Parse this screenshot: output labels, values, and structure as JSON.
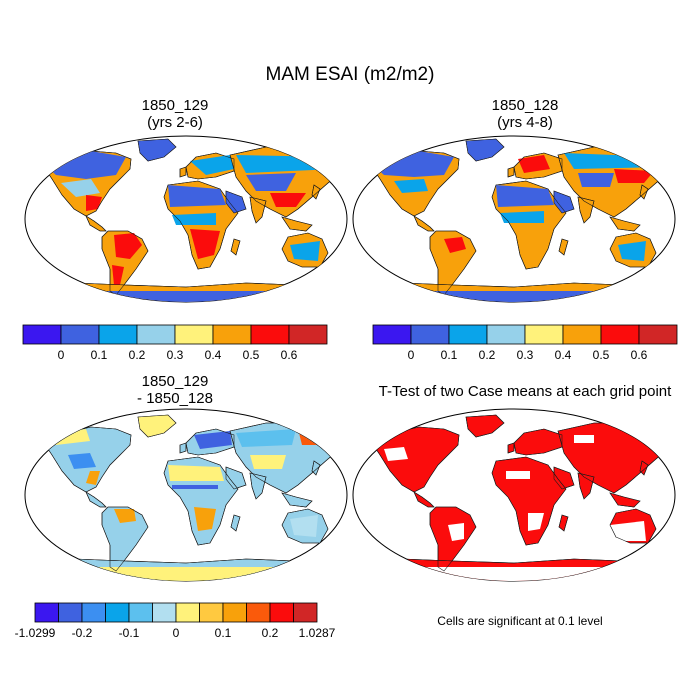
{
  "title": "MAM ESAI (m2/m2)",
  "panels": [
    {
      "name": "1850_129",
      "title_line1": "1850_129",
      "title_line2": "(yrs 2-6)"
    },
    {
      "name": "1850_128",
      "title_line1": "1850_128",
      "title_line2": "(yrs 4-8)"
    },
    {
      "name": "difference",
      "title_line1": "1850_129",
      "title_line2": "- 1850_128"
    },
    {
      "name": "ttest",
      "title_line1": "T-Test of two Case means at each grid point",
      "title_line2": ""
    }
  ],
  "colorbar_abs": {
    "colors": [
      "#3b17f0",
      "#3f62e0",
      "#0aa4ea",
      "#96d1ea",
      "#fff27b",
      "#f8a10b",
      "#fb0c0c",
      "#d12626"
    ],
    "labels": [
      "0",
      "0.1",
      "0.2",
      "0.3",
      "0.4",
      "0.5",
      "0.6"
    ]
  },
  "colorbar_diff": {
    "colors": [
      "#3b17f0",
      "#3f62e0",
      "#3c8ff1",
      "#0aa4ea",
      "#5cc0ee",
      "#b2dff0",
      "#fff27b",
      "#ffc940",
      "#f8a10b",
      "#fa5a0b",
      "#fb0c0c",
      "#d12626"
    ],
    "labels": [
      "-1.0299",
      "-0.2",
      "-0.1",
      "0",
      "0.1",
      "0.2",
      "1.0287"
    ]
  },
  "note": "Cells are significant at 0.1 level",
  "chart_data": {
    "type": "heatmap",
    "title": "MAM ESAI (m2/m2)",
    "variable": "ESAI",
    "units": "m2/m2",
    "season": "MAM",
    "projection": "Robinson (global)",
    "panels": [
      "1850_129 (yrs 2-6)",
      "1850_128 (yrs 4-8)",
      "1850_129 - 1850_128",
      "T-Test of two Case means at each grid point"
    ],
    "abs_levels": [
      0,
      0.1,
      0.2,
      0.3,
      0.4,
      0.5,
      0.6
    ],
    "diff_levels": [
      -1.0299,
      -0.2,
      -0.1,
      0,
      0.1,
      0.2,
      1.0287
    ],
    "significance_level": 0.1
  }
}
